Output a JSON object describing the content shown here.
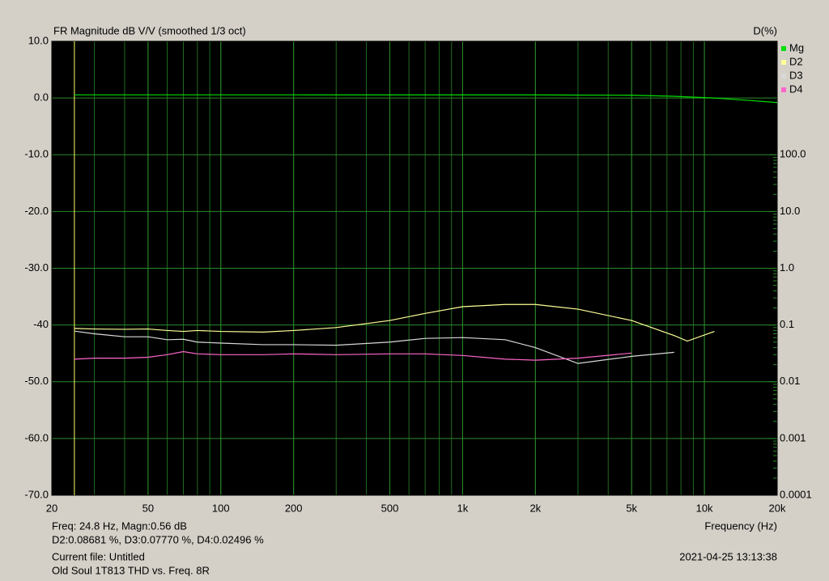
{
  "chart_data": {
    "type": "line",
    "title": "FR Magnitude dB V/V (smoothed 1/3 oct)",
    "y2_label": "D(%)",
    "x_label": "Frequency (Hz)",
    "log_x": true,
    "log_y2": true,
    "grid": true,
    "background": "#000000",
    "grid_color": "#1f6b1f",
    "cursor_x": 24.8,
    "cursor_color": "#ffff66",
    "xlim": [
      20,
      20000
    ],
    "xticks": [
      20,
      50,
      100,
      200,
      500,
      {
        "value": 1000,
        "label": "1k"
      },
      {
        "value": 2000,
        "label": "2k"
      },
      {
        "value": 5000,
        "label": "5k"
      },
      {
        "value": 10000,
        "label": "10k"
      },
      {
        "value": 20000,
        "label": "20k"
      }
    ],
    "ylim": [
      -70,
      10
    ],
    "yticks": [
      {
        "value": 10,
        "label": "10.0"
      },
      {
        "value": 0,
        "label": "0.0"
      },
      {
        "value": -10,
        "label": "-10.0"
      },
      {
        "value": -20,
        "label": "-20.0"
      },
      {
        "value": -30,
        "label": "-30.0"
      },
      {
        "value": -40,
        "label": "-40"
      },
      {
        "value": -50,
        "label": "-50.0"
      },
      {
        "value": -60,
        "label": "-60.0"
      },
      {
        "value": -70,
        "label": "-70.0"
      }
    ],
    "y2lim": [
      0.0001,
      10000
    ],
    "y2ticks": [
      {
        "value": 100,
        "label": "100.0"
      },
      {
        "value": 10,
        "label": "10.0"
      },
      {
        "value": 1,
        "label": "1.0"
      },
      0.1,
      0.01,
      0.001,
      0.0001
    ],
    "x": [
      24.8,
      30,
      40,
      50,
      60,
      70,
      80,
      100,
      150,
      200,
      300,
      500,
      700,
      1000,
      1500,
      2000,
      3000,
      5000,
      7500,
      8500,
      11000,
      15000,
      20000
    ],
    "series": [
      {
        "name": "Mg",
        "color": "#00e000",
        "axis": "y",
        "values": [
          0.56,
          0.56,
          0.56,
          0.56,
          0.56,
          0.56,
          0.56,
          0.56,
          0.56,
          0.56,
          0.55,
          0.55,
          0.55,
          0.55,
          0.55,
          0.55,
          0.52,
          0.5,
          0.3,
          0.2,
          0.0,
          -0.4,
          -0.8
        ]
      },
      {
        "name": "D2",
        "color": "#ffff99",
        "axis": "y2",
        "values": [
          0.087,
          0.085,
          0.084,
          0.085,
          0.08,
          0.077,
          0.08,
          0.077,
          0.075,
          0.08,
          0.09,
          0.12,
          0.16,
          0.21,
          0.23,
          0.23,
          0.19,
          0.12,
          0.065,
          0.052,
          0.077,
          null,
          null
        ]
      },
      {
        "name": "D3",
        "color": "#d8d8d8",
        "axis": "y2",
        "values": [
          0.078,
          0.07,
          0.062,
          0.062,
          0.055,
          0.056,
          0.05,
          0.048,
          0.045,
          0.045,
          0.044,
          0.05,
          0.058,
          0.06,
          0.055,
          0.04,
          0.021,
          0.028,
          0.033,
          null,
          null,
          null,
          null
        ]
      },
      {
        "name": "D4",
        "color": "#ff66cc",
        "axis": "y2",
        "values": [
          0.025,
          0.026,
          0.026,
          0.027,
          0.03,
          0.034,
          0.031,
          0.03,
          0.03,
          0.031,
          0.03,
          0.031,
          0.031,
          0.029,
          0.025,
          0.024,
          0.026,
          0.032,
          null,
          null,
          null,
          null,
          null
        ]
      }
    ]
  },
  "info_lines": [
    "Freq: 24.8 Hz, Magn:0.56 dB",
    "D2:0.08681 %, D3:0.07770 %, D4:0.02496 %",
    "Current file: Untitled",
    "Old Soul 1T813 THD vs. Freq. 8R"
  ],
  "timestamp": "2021-04-25  13:13:38"
}
